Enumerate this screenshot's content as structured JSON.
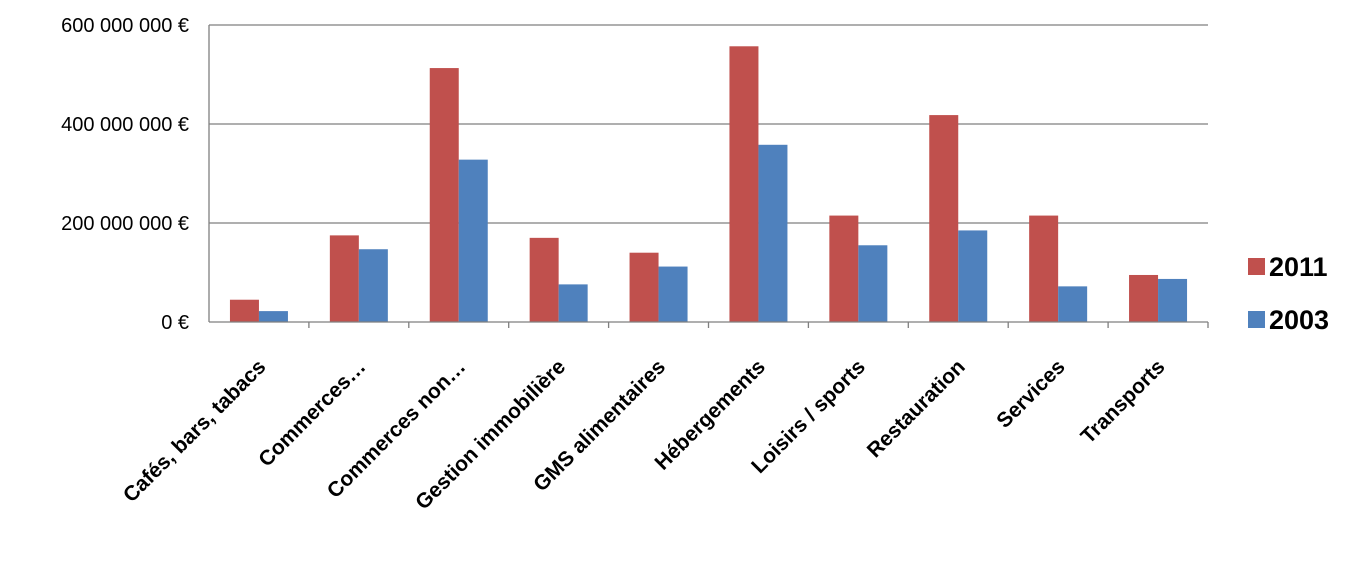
{
  "chart_data": {
    "type": "bar",
    "categories": [
      "Cafés, bars, tabacs",
      "Commerces…",
      "Commerces non…",
      "Gestion immobilière",
      "GMS alimentaires",
      "Hébergements",
      "Loisirs / sports",
      "Restauration",
      "Services",
      "Transports"
    ],
    "series": [
      {
        "name": "2011",
        "color": "#c0504d",
        "values": [
          45000000,
          175000000,
          513000000,
          170000000,
          140000000,
          557000000,
          215000000,
          418000000,
          215000000,
          95000000
        ]
      },
      {
        "name": "2003",
        "color": "#4f81bd",
        "values": [
          22000000,
          147000000,
          328000000,
          76000000,
          112000000,
          358000000,
          155000000,
          185000000,
          72000000,
          87000000
        ]
      }
    ],
    "ylim": [
      0,
      600000000
    ],
    "yticks": [
      0,
      200000000,
      400000000,
      600000000
    ],
    "ytick_labels": [
      "0 €",
      "200 000 000 €",
      "400 000 000 €",
      "600 000 000 €"
    ],
    "grid": true,
    "legend": "right",
    "title": "",
    "xlabel": "",
    "ylabel": ""
  }
}
